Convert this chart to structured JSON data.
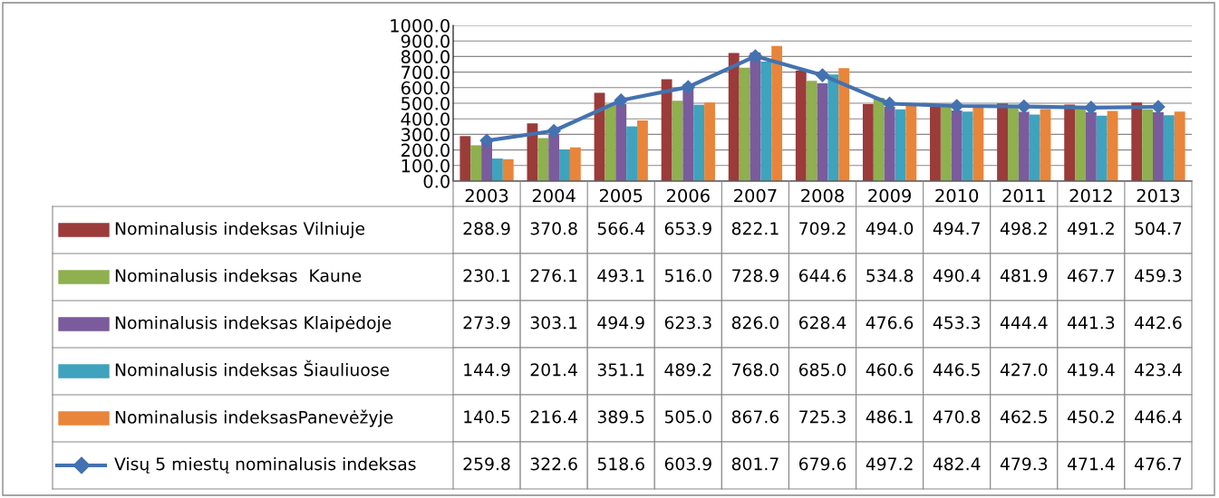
{
  "chart_data": {
    "type": "bar",
    "categories": [
      "2003",
      "2004",
      "2005",
      "2006",
      "2007",
      "2008",
      "2009",
      "2010",
      "2011",
      "2012",
      "2013"
    ],
    "series": [
      {
        "name": "Nominalusis indeksas Vilniuje",
        "color": "#9b3b3a",
        "values": [
          288.9,
          370.8,
          566.4,
          653.9,
          822.1,
          709.2,
          494.0,
          494.7,
          498.2,
          491.2,
          504.7
        ],
        "value_labels": [
          "288.9",
          "370.8",
          "566.4",
          "653.9",
          "822.1",
          "709.2",
          "494.0",
          "494.7",
          "498.2",
          "491.2",
          "504.7"
        ]
      },
      {
        "name": "Nominalusis indeksas  Kaune",
        "color": "#8eb04f",
        "values": [
          230.1,
          276.1,
          493.1,
          516.0,
          728.9,
          644.6,
          534.8,
          490.4,
          481.9,
          467.7,
          459.3
        ],
        "value_labels": [
          "230.1",
          "276.1",
          "493.1",
          "516.0",
          "728.9",
          "644.6",
          "534.8",
          "490.4",
          "481.9",
          "467.7",
          "459.3"
        ]
      },
      {
        "name": "Nominalusis indeksas Klaipėdoje",
        "color": "#7a5b9c",
        "values": [
          273.9,
          303.1,
          494.9,
          623.3,
          826.0,
          628.4,
          476.6,
          453.3,
          444.4,
          441.3,
          442.6
        ],
        "value_labels": [
          "273.9",
          "303.1",
          "494.9",
          "623.3",
          "826.0",
          "628.4",
          "476.6",
          "453.3",
          "444.4",
          "441.3",
          "442.6"
        ]
      },
      {
        "name": "Nominalusis indeksas Šiauliuose",
        "color": "#3fa3bd",
        "values": [
          144.9,
          201.4,
          351.1,
          489.2,
          768.0,
          685.0,
          460.6,
          446.5,
          427.0,
          419.4,
          423.4
        ],
        "value_labels": [
          "144.9",
          "201.4",
          "351.1",
          "489.2",
          "768.0",
          "685.0",
          "460.6",
          "446.5",
          "427.0",
          "419.4",
          "423.4"
        ]
      },
      {
        "name": "Nominalusis indeksasPanevėžyje",
        "color": "#e9853a",
        "values": [
          140.5,
          216.4,
          389.5,
          505.0,
          867.6,
          725.3,
          486.1,
          470.8,
          462.5,
          450.2,
          446.4
        ],
        "value_labels": [
          "140.5",
          "216.4",
          "389.5",
          "505.0",
          "867.6",
          "725.3",
          "486.1",
          "470.8",
          "462.5",
          "450.2",
          "446.4"
        ]
      },
      {
        "name": "Visų 5 miestų nominalusis indeksas",
        "type": "line",
        "color": "#4472b0",
        "marker": "diamond",
        "line_style": "solid",
        "values": [
          259.8,
          322.6,
          518.6,
          603.9,
          801.7,
          679.6,
          497.2,
          482.4,
          479.3,
          471.4,
          476.7
        ],
        "value_labels": [
          "259.8",
          "322.6",
          "518.6",
          "603.9",
          "801.7",
          "679.6",
          "497.2",
          "482.4",
          "479.3",
          "471.4",
          "476.7"
        ]
      }
    ],
    "ylim": [
      0,
      1000
    ],
    "yticks": [
      {
        "value": 0,
        "label": "0.0"
      },
      {
        "value": 100,
        "label": "100.0"
      },
      {
        "value": 200,
        "label": "200.0"
      },
      {
        "value": 300,
        "label": "300.0"
      },
      {
        "value": 400,
        "label": "400.0"
      },
      {
        "value": 500,
        "label": "500.0"
      },
      {
        "value": 600,
        "label": "600.0"
      },
      {
        "value": 700,
        "label": "700.0"
      },
      {
        "value": 800,
        "label": "800.0"
      },
      {
        "value": 900,
        "label": "900.0"
      },
      {
        "value": 1000,
        "label": "1000.0"
      }
    ],
    "grid": "y",
    "legend": "bottom"
  }
}
